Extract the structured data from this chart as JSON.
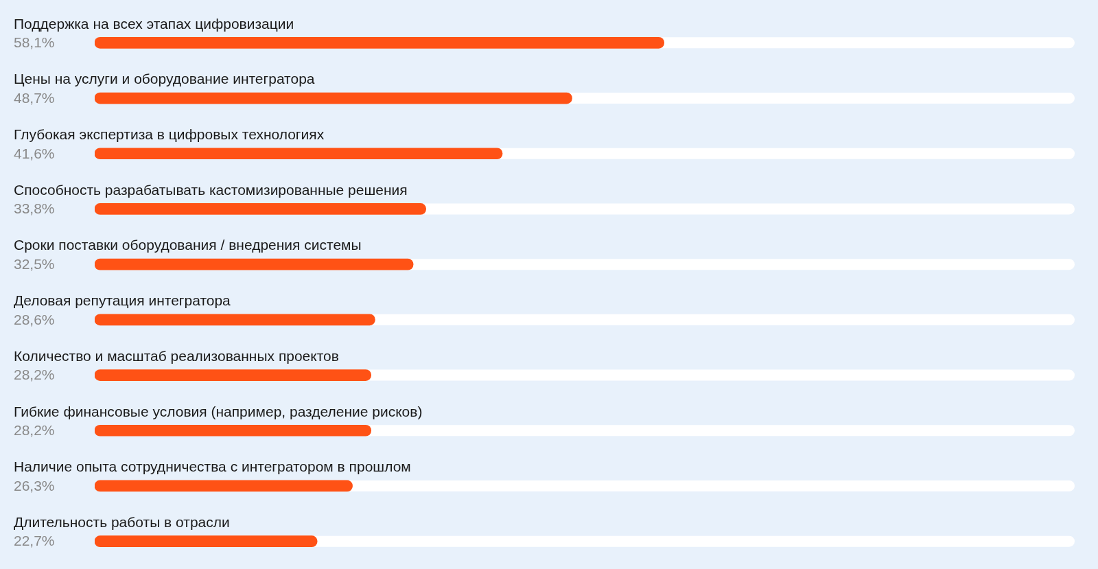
{
  "chart_data": {
    "type": "bar",
    "orientation": "horizontal",
    "categories": [
      "Поддержка на всех этапах цифровизации",
      "Цены на услуги и оборудование интегратора",
      "Глубокая экспертиза в цифровых технологиях",
      "Способность разрабатывать кастомизированные решения",
      "Сроки поставки оборудования / внедрения системы",
      "Деловая репутация интегратора",
      "Количество и масштаб реализованных проектов",
      "Гибкие финансовые условия (например, разделение рисков)",
      "Наличие опыта сотрудничества с интегратором в прошлом",
      "Длительность работы в отрасли"
    ],
    "values": [
      58.1,
      48.7,
      41.6,
      33.8,
      32.5,
      28.6,
      28.2,
      28.2,
      26.3,
      22.7
    ],
    "value_labels": [
      "58,1%",
      "48,7%",
      "41,6%",
      "33,8%",
      "32,5%",
      "28,6%",
      "28,2%",
      "28,2%",
      "26,3%",
      "22,7%"
    ],
    "color": "#ff5215",
    "xlim": [
      0,
      100
    ],
    "tick_labels": "y"
  }
}
